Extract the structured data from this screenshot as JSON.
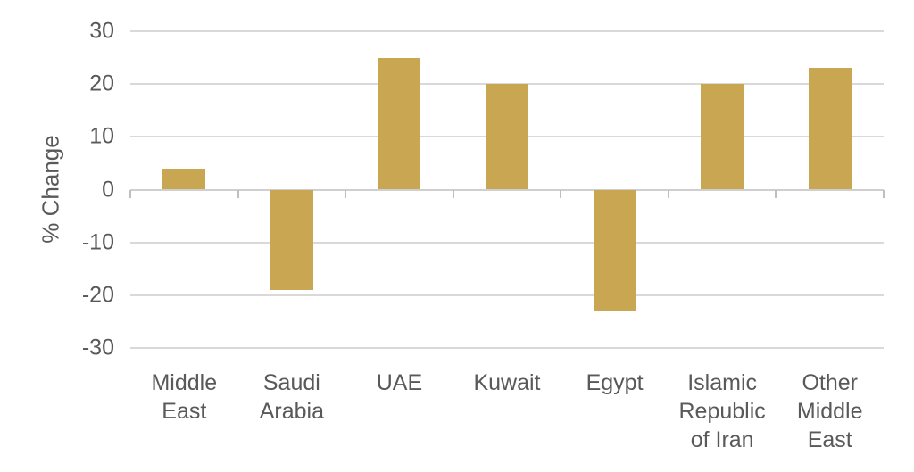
{
  "chart_data": {
    "type": "bar",
    "title": "",
    "xlabel": "",
    "ylabel": "% Change",
    "categories": [
      "Middle East",
      "Saudi Arabia",
      "UAE",
      "Kuwait",
      "Egypt",
      "Islamic Republic of Iran",
      "Other Middle East"
    ],
    "category_label_lines": [
      [
        "Middle",
        "East"
      ],
      [
        "Saudi",
        "Arabia"
      ],
      [
        "UAE"
      ],
      [
        "Kuwait"
      ],
      [
        "Egypt"
      ],
      [
        "Islamic",
        "Republic",
        "of Iran"
      ],
      [
        "Other",
        "Middle",
        "East"
      ]
    ],
    "values": [
      4,
      -19,
      25,
      20,
      -23,
      20,
      23
    ],
    "ylim": [
      -30,
      30
    ],
    "yticks": [
      30,
      20,
      10,
      0,
      -10,
      -20,
      -30
    ],
    "grid": true,
    "legend": "none",
    "colors": {
      "bar": "#c9a651",
      "gridline": "#d9d9d9",
      "axis_line": "#cfcfcf",
      "tick_mark": "#bfbfbf",
      "text": "#595959",
      "background": "#ffffff"
    }
  }
}
